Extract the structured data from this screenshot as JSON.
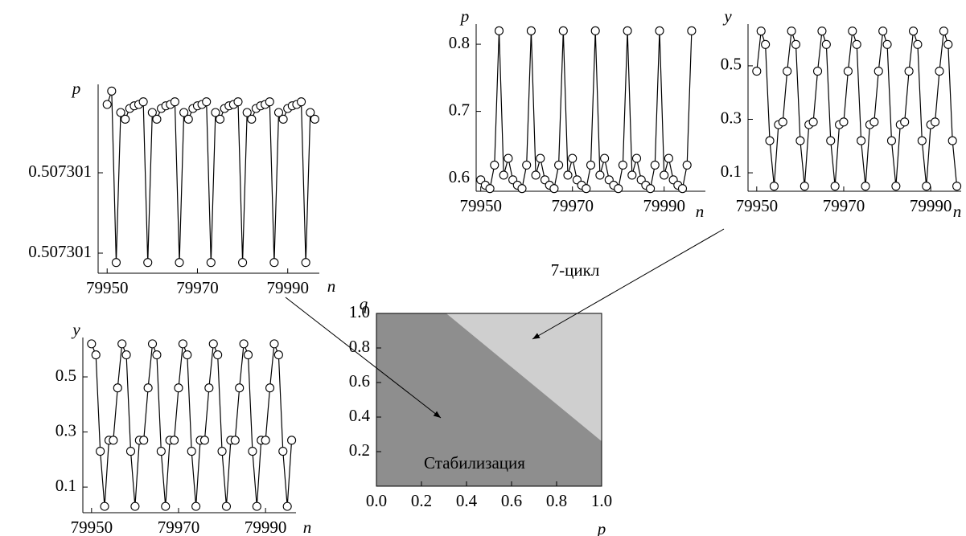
{
  "chart_data": [
    {
      "type": "line",
      "x_label": "n",
      "y_label": "p",
      "x": [
        79950,
        79951,
        79952,
        79953,
        79954,
        79955,
        79956,
        79957,
        79958,
        79959,
        79960,
        79961,
        79962,
        79963,
        79964,
        79965,
        79966,
        79967,
        79968,
        79969,
        79970,
        79971,
        79972,
        79973,
        79974,
        79975,
        79976,
        79977,
        79978,
        79979,
        79980,
        79981,
        79982,
        79983,
        79984,
        79985,
        79986,
        79987,
        79988,
        79989,
        79990,
        79991,
        79992,
        79993,
        79994,
        79995,
        79996
      ],
      "series": [
        {
          "color": "#000000",
          "values": [
            0.50730171,
            0.50730181,
            0.50730053,
            0.50730165,
            0.5073016,
            0.50730168,
            0.5073017,
            0.50730171,
            0.50730173,
            0.50730053,
            0.50730165,
            0.5073016,
            0.50730168,
            0.5073017,
            0.50730171,
            0.50730173,
            0.50730053,
            0.50730165,
            0.5073016,
            0.50730168,
            0.5073017,
            0.50730171,
            0.50730173,
            0.50730053,
            0.50730165,
            0.5073016,
            0.50730168,
            0.5073017,
            0.50730171,
            0.50730173,
            0.50730053,
            0.50730165,
            0.5073016,
            0.50730168,
            0.5073017,
            0.50730171,
            0.50730173,
            0.50730053,
            0.50730165,
            0.5073016,
            0.50730168,
            0.5073017,
            0.50730171,
            0.50730173,
            0.50730053,
            0.50730165,
            0.5073016
          ]
        }
      ],
      "xlim": [
        79948,
        79997
      ],
      "ylim": [
        0.50730045,
        0.50730186
      ],
      "xticks": [
        79950,
        79970,
        79990
      ],
      "yticks": [
        {
          "value": 0.5073006,
          "label": "0.507301"
        },
        {
          "value": 0.5073012,
          "label": "0.507301"
        }
      ]
    },
    {
      "type": "line",
      "x_label": "n",
      "y_label": "p",
      "x": [
        79950,
        79951,
        79952,
        79953,
        79954,
        79955,
        79956,
        79957,
        79958,
        79959,
        79960,
        79961,
        79962,
        79963,
        79964,
        79965,
        79966,
        79967,
        79968,
        79969,
        79970,
        79971,
        79972,
        79973,
        79974,
        79975,
        79976,
        79977,
        79978,
        79979,
        79980,
        79981,
        79982,
        79983,
        79984,
        79985,
        79986,
        79987,
        79988,
        79989,
        79990,
        79991,
        79992,
        79993,
        79994,
        79995,
        79996
      ],
      "series": [
        {
          "color": "#000000",
          "values": [
            0.598,
            0.59,
            0.585,
            0.62,
            0.82,
            0.605,
            0.63,
            0.598,
            0.59,
            0.585,
            0.62,
            0.82,
            0.605,
            0.63,
            0.598,
            0.59,
            0.585,
            0.62,
            0.82,
            0.605,
            0.63,
            0.598,
            0.59,
            0.585,
            0.62,
            0.82,
            0.605,
            0.63,
            0.598,
            0.59,
            0.585,
            0.62,
            0.82,
            0.605,
            0.63,
            0.598,
            0.59,
            0.585,
            0.62,
            0.82,
            0.605,
            0.63,
            0.598,
            0.59,
            0.585,
            0.62,
            0.82
          ]
        }
      ],
      "xlim": [
        79949,
        79999
      ],
      "ylim": [
        0.581,
        0.83
      ],
      "xticks": [
        79950,
        79970,
        79990
      ],
      "yticks": [
        0.6,
        0.7,
        0.8
      ]
    },
    {
      "type": "line",
      "x_label": "n",
      "y_label": "y",
      "x": [
        79950,
        79951,
        79952,
        79953,
        79954,
        79955,
        79956,
        79957,
        79958,
        79959,
        79960,
        79961,
        79962,
        79963,
        79964,
        79965,
        79966,
        79967,
        79968,
        79969,
        79970,
        79971,
        79972,
        79973,
        79974,
        79975,
        79976,
        79977,
        79978,
        79979,
        79980,
        79981,
        79982,
        79983,
        79984,
        79985,
        79986,
        79987,
        79988,
        79989,
        79990,
        79991,
        79992,
        79993,
        79994,
        79995,
        79996
      ],
      "series": [
        {
          "color": "#000000",
          "values": [
            0.48,
            0.63,
            0.58,
            0.22,
            0.05,
            0.28,
            0.29,
            0.48,
            0.63,
            0.58,
            0.22,
            0.05,
            0.28,
            0.29,
            0.48,
            0.63,
            0.58,
            0.22,
            0.05,
            0.28,
            0.29,
            0.48,
            0.63,
            0.58,
            0.22,
            0.05,
            0.28,
            0.29,
            0.48,
            0.63,
            0.58,
            0.22,
            0.05,
            0.28,
            0.29,
            0.48,
            0.63,
            0.58,
            0.22,
            0.05,
            0.28,
            0.29,
            0.48,
            0.63,
            0.58,
            0.22,
            0.05
          ]
        }
      ],
      "xlim": [
        79948,
        79997
      ],
      "ylim": [
        0.031,
        0.656
      ],
      "xticks": [
        79950,
        79970,
        79990
      ],
      "yticks": [
        0.1,
        0.3,
        0.5
      ]
    },
    {
      "type": "line",
      "x_label": "n",
      "y_label": "y",
      "x": [
        79950,
        79951,
        79952,
        79953,
        79954,
        79955,
        79956,
        79957,
        79958,
        79959,
        79960,
        79961,
        79962,
        79963,
        79964,
        79965,
        79966,
        79967,
        79968,
        79969,
        79970,
        79971,
        79972,
        79973,
        79974,
        79975,
        79976,
        79977,
        79978,
        79979,
        79980,
        79981,
        79982,
        79983,
        79984,
        79985,
        79986,
        79987,
        79988,
        79989,
        79990,
        79991,
        79992,
        79993,
        79994,
        79995,
        79996
      ],
      "series": [
        {
          "color": "#000000",
          "values": [
            0.62,
            0.58,
            0.23,
            0.03,
            0.27,
            0.27,
            0.46,
            0.62,
            0.58,
            0.23,
            0.03,
            0.27,
            0.27,
            0.46,
            0.62,
            0.58,
            0.23,
            0.03,
            0.27,
            0.27,
            0.46,
            0.62,
            0.58,
            0.23,
            0.03,
            0.27,
            0.27,
            0.46,
            0.62,
            0.58,
            0.23,
            0.03,
            0.27,
            0.27,
            0.46,
            0.62,
            0.58,
            0.23,
            0.03,
            0.27,
            0.27,
            0.46,
            0.62,
            0.58,
            0.23,
            0.03,
            0.27
          ]
        }
      ],
      "xlim": [
        79948,
        79997
      ],
      "ylim": [
        0.007,
        0.643
      ],
      "xticks": [
        79950,
        79970,
        79990
      ],
      "yticks": [
        0.1,
        0.3,
        0.5
      ]
    },
    {
      "type": "region",
      "x_label": "p",
      "y_label": "q",
      "regions": [
        {
          "name": "Стабилизация",
          "color": "#8e8e8e"
        },
        {
          "name": "7-цикл",
          "color": "#cfcfcf",
          "p": [
            0.31,
            1.0,
            1.0
          ],
          "q": [
            1.0,
            1.0,
            0.26
          ]
        }
      ],
      "xlim": [
        0,
        1
      ],
      "ylim": [
        0,
        1
      ],
      "xticks": [
        {
          "value": 0,
          "label": "0.0"
        },
        0.2,
        0.4,
        0.6,
        0.8,
        {
          "value": 1,
          "label": "1.0"
        }
      ],
      "yticks": [
        0.2,
        0.4,
        0.6,
        0.8,
        {
          "value": 1,
          "label": "1.0"
        }
      ]
    }
  ]
}
